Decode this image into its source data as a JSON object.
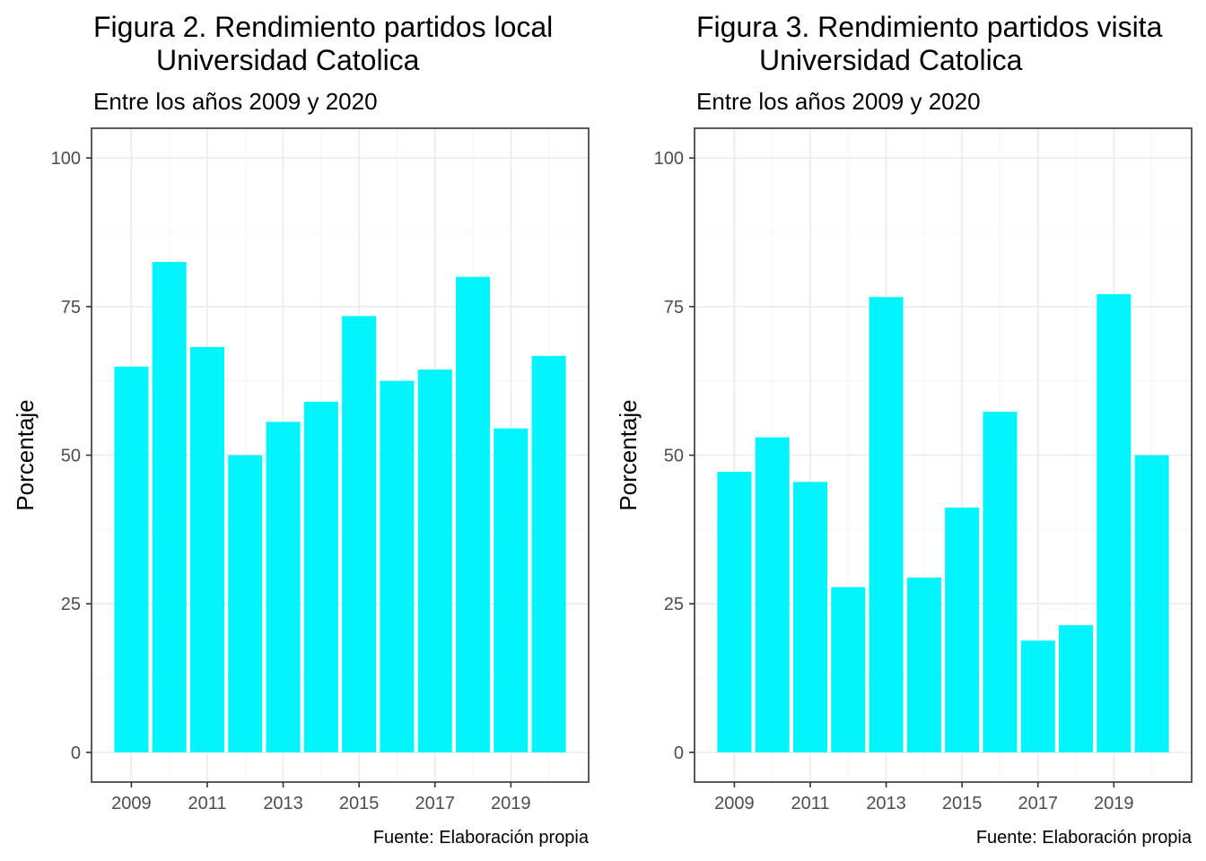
{
  "chart_data": [
    {
      "type": "bar",
      "title_lines": [
        "Figura 2. Rendimiento partidos local",
        "Universidad Catolica"
      ],
      "subtitle": "Entre los años 2009 y 2020",
      "ylabel": "Porcentaje",
      "caption": "Fuente: Elaboración propia",
      "x": [
        2009,
        2010,
        2011,
        2012,
        2013,
        2014,
        2015,
        2016,
        2017,
        2018,
        2019,
        2020
      ],
      "values": [
        64.9,
        82.5,
        68.2,
        50.0,
        55.6,
        59.0,
        73.4,
        62.5,
        64.4,
        80.0,
        54.5,
        66.7
      ],
      "x_ticks": [
        2009,
        2011,
        2013,
        2015,
        2017,
        2019
      ],
      "y_ticks": [
        0,
        25,
        50,
        75,
        100
      ],
      "ylim": [
        0,
        100
      ],
      "bar_color": "#00F5FF",
      "grid": true
    },
    {
      "type": "bar",
      "title_lines": [
        "Figura 3. Rendimiento partidos visita",
        "Universidad Catolica"
      ],
      "subtitle": "Entre los años 2009 y 2020",
      "ylabel": "Porcentaje",
      "caption": "Fuente: Elaboración propia",
      "x": [
        2009,
        2010,
        2011,
        2012,
        2013,
        2014,
        2015,
        2016,
        2017,
        2018,
        2019,
        2020
      ],
      "values": [
        47.2,
        53.0,
        45.5,
        27.8,
        76.6,
        29.4,
        41.2,
        57.3,
        18.8,
        21.4,
        77.1,
        50.0
      ],
      "x_ticks": [
        2009,
        2011,
        2013,
        2015,
        2017,
        2019
      ],
      "y_ticks": [
        0,
        25,
        50,
        75,
        100
      ],
      "ylim": [
        0,
        100
      ],
      "bar_color": "#00F5FF",
      "grid": true
    }
  ]
}
